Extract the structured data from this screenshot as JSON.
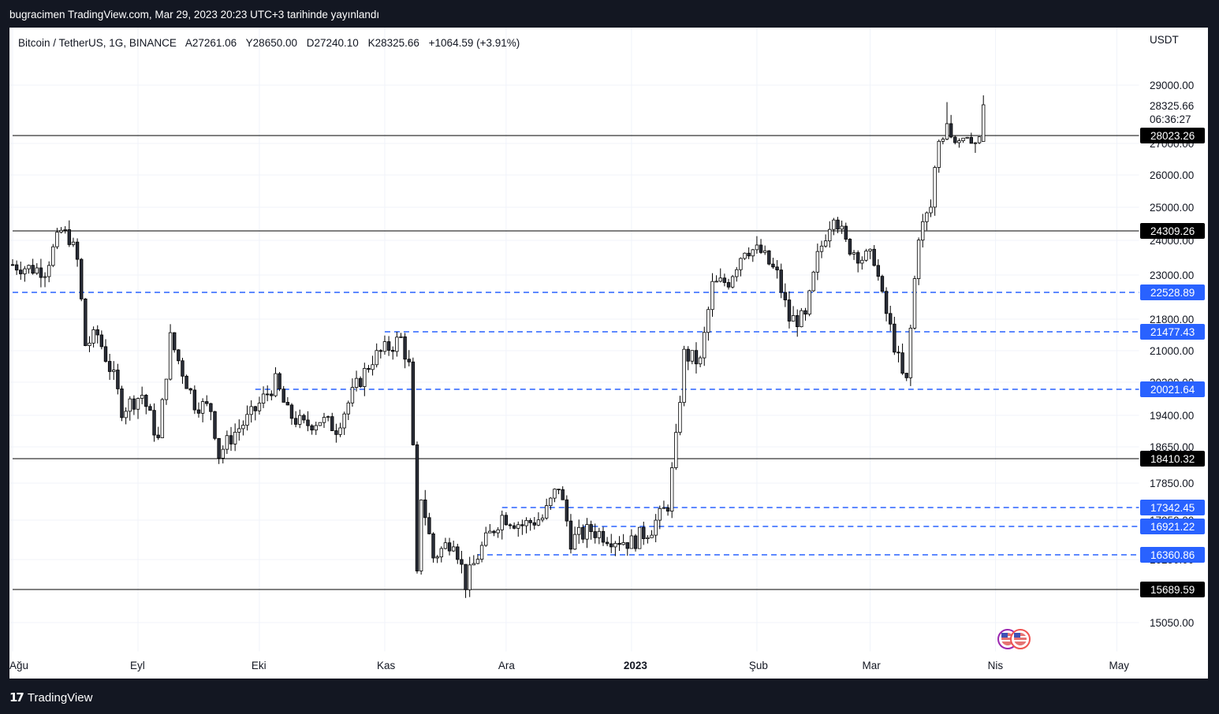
{
  "caption": "bugracimen TradingView.com, Mar 29, 2023 20:23 UTC+3 tarihinde yayınlandı",
  "footer": {
    "logo_mark": "17",
    "logo_word": "TradingView"
  },
  "chart_data": {
    "type": "candlestick",
    "legend": {
      "symbol": "Bitcoin / TetherUS, 1G, BINANCE",
      "open": "A27261.06",
      "high": "Y28650.00",
      "low": "D27240.10",
      "close": "K28325.66",
      "change": "+1064.59 (+3.91%)"
    },
    "currency": "USDT",
    "y_ticks": [
      "29000.00",
      "27000.00",
      "26000.00",
      "25000.00",
      "24000.00",
      "23000.00",
      "21800.00",
      "21000.00",
      "20200.00",
      "19400.00",
      "18650.00",
      "17850.00",
      "17050.00",
      "16250.00",
      "15050.00"
    ],
    "x_ticks": [
      {
        "label": "Ağu",
        "bold": false
      },
      {
        "label": "Eyl",
        "bold": false
      },
      {
        "label": "Eki",
        "bold": false
      },
      {
        "label": "Kas",
        "bold": false
      },
      {
        "label": "Ara",
        "bold": false
      },
      {
        "label": "2023",
        "bold": true
      },
      {
        "label": "Şub",
        "bold": false
      },
      {
        "label": "Mar",
        "bold": false
      },
      {
        "label": "Nis",
        "bold": false
      },
      {
        "label": "May",
        "bold": false
      }
    ],
    "last_price": {
      "price": "28325.66",
      "countdown": "06:36:27"
    },
    "levels": [
      {
        "label": "28023.26",
        "style": "solid",
        "from": "2022-08-01",
        "color": "#000000"
      },
      {
        "label": "24309.26",
        "style": "solid",
        "from": "2022-08-01",
        "color": "#000000"
      },
      {
        "label": "22528.89",
        "style": "dashed",
        "from": "2022-08-01",
        "color": "#2962ff"
      },
      {
        "label": "21477.43",
        "style": "dashed",
        "from": "2022-11-01",
        "color": "#2962ff"
      },
      {
        "label": "20021.64",
        "style": "dashed",
        "from": "2022-09-30",
        "color": "#2962ff"
      },
      {
        "label": "18410.32",
        "style": "solid",
        "from": "2022-08-01",
        "color": "#000000"
      },
      {
        "label": "17342.45",
        "style": "dashed",
        "from": "2022-11-30",
        "color": "#2962ff"
      },
      {
        "label": "16921.22",
        "style": "dashed",
        "from": "2022-12-20",
        "color": "#2962ff"
      },
      {
        "label": "16360.86",
        "style": "dashed",
        "from": "2022-11-24",
        "color": "#2962ff"
      },
      {
        "label": "15689.59",
        "style": "solid",
        "from": "2022-08-01",
        "color": "#000000"
      }
    ],
    "series": [
      {
        "date": "2022-08-01",
        "close": 23300
      },
      {
        "date": "2022-08-05",
        "close": 23200
      },
      {
        "date": "2022-08-09",
        "close": 23150
      },
      {
        "date": "2022-08-13",
        "close": 24300
      },
      {
        "date": "2022-08-15",
        "close": 24100
      },
      {
        "date": "2022-08-17",
        "close": 23400
      },
      {
        "date": "2022-08-19",
        "close": 21150
      },
      {
        "date": "2022-08-22",
        "close": 21400
      },
      {
        "date": "2022-08-26",
        "close": 20300
      },
      {
        "date": "2022-08-28",
        "close": 19550
      },
      {
        "date": "2022-09-02",
        "close": 19900
      },
      {
        "date": "2022-09-06",
        "close": 18800
      },
      {
        "date": "2022-09-09",
        "close": 21300
      },
      {
        "date": "2022-09-13",
        "close": 20200
      },
      {
        "date": "2022-09-15",
        "close": 19700
      },
      {
        "date": "2022-09-19",
        "close": 19550
      },
      {
        "date": "2022-09-21",
        "close": 18500
      },
      {
        "date": "2022-09-25",
        "close": 19000
      },
      {
        "date": "2022-09-29",
        "close": 19400
      },
      {
        "date": "2022-10-05",
        "close": 20200
      },
      {
        "date": "2022-10-08",
        "close": 19450
      },
      {
        "date": "2022-10-12",
        "close": 19150
      },
      {
        "date": "2022-10-16",
        "close": 19300
      },
      {
        "date": "2022-10-20",
        "close": 19100
      },
      {
        "date": "2022-10-25",
        "close": 20100
      },
      {
        "date": "2022-10-29",
        "close": 20800
      },
      {
        "date": "2022-11-05",
        "close": 21300
      },
      {
        "date": "2022-11-07",
        "close": 20600
      },
      {
        "date": "2022-11-08",
        "close": 18550
      },
      {
        "date": "2022-11-09",
        "close": 15900
      },
      {
        "date": "2022-11-10",
        "close": 17600
      },
      {
        "date": "2022-11-13",
        "close": 16300
      },
      {
        "date": "2022-11-18",
        "close": 16700
      },
      {
        "date": "2022-11-21",
        "close": 15800
      },
      {
        "date": "2022-11-25",
        "close": 16500
      },
      {
        "date": "2022-11-30",
        "close": 17150
      },
      {
        "date": "2022-12-05",
        "close": 16950
      },
      {
        "date": "2022-12-10",
        "close": 17100
      },
      {
        "date": "2022-12-14",
        "close": 17800
      },
      {
        "date": "2022-12-17",
        "close": 16650
      },
      {
        "date": "2022-12-22",
        "close": 16850
      },
      {
        "date": "2022-12-27",
        "close": 16700
      },
      {
        "date": "2023-01-01",
        "close": 16600
      },
      {
        "date": "2023-01-06",
        "close": 16900
      },
      {
        "date": "2023-01-10",
        "close": 17400
      },
      {
        "date": "2023-01-12",
        "close": 18800
      },
      {
        "date": "2023-01-14",
        "close": 20900
      },
      {
        "date": "2023-01-18",
        "close": 20700
      },
      {
        "date": "2023-01-21",
        "close": 22700
      },
      {
        "date": "2023-01-25",
        "close": 22850
      },
      {
        "date": "2023-01-29",
        "close": 23800
      },
      {
        "date": "2023-02-02",
        "close": 23650
      },
      {
        "date": "2023-02-06",
        "close": 23000
      },
      {
        "date": "2023-02-09",
        "close": 21800
      },
      {
        "date": "2023-02-13",
        "close": 21800
      },
      {
        "date": "2023-02-16",
        "close": 23500
      },
      {
        "date": "2023-02-20",
        "close": 24900
      },
      {
        "date": "2023-02-23",
        "close": 23900
      },
      {
        "date": "2023-02-27",
        "close": 23500
      },
      {
        "date": "2023-03-02",
        "close": 23500
      },
      {
        "date": "2023-03-04",
        "close": 22350
      },
      {
        "date": "2023-03-09",
        "close": 20350
      },
      {
        "date": "2023-03-10",
        "close": 20200
      },
      {
        "date": "2023-03-13",
        "close": 24200
      },
      {
        "date": "2023-03-16",
        "close": 25000
      },
      {
        "date": "2023-03-18",
        "close": 27400
      },
      {
        "date": "2023-03-20",
        "close": 28200
      },
      {
        "date": "2023-03-22",
        "close": 27300
      },
      {
        "date": "2023-03-25",
        "close": 27500
      },
      {
        "date": "2023-03-27",
        "close": 27100
      },
      {
        "date": "2023-03-29",
        "close": 28325.66
      }
    ],
    "grid": true,
    "price_scale": "right",
    "legend_position": "top-left"
  }
}
